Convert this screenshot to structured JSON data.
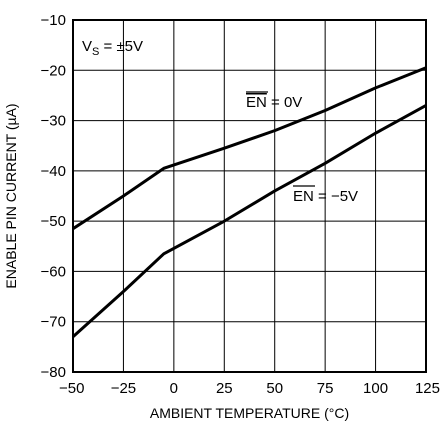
{
  "chart_data": {
    "type": "line",
    "title": "",
    "xlabel": "AMBIENT TEMPERATURE (°C)",
    "ylabel": "ENABLE PIN CURRENT (µA)",
    "xlim": [
      -50,
      125
    ],
    "ylim": [
      -80,
      -10
    ],
    "x_ticks": [
      -50,
      -25,
      0,
      25,
      50,
      75,
      100,
      125
    ],
    "x_tick_labels": [
      "−50",
      "−25",
      "0",
      "25",
      "50",
      "75",
      "100",
      "125"
    ],
    "y_ticks": [
      -10,
      -20,
      -30,
      -40,
      -50,
      -60,
      -70,
      -80
    ],
    "y_tick_labels": [
      "−10",
      "−20",
      "−30",
      "−40",
      "−50",
      "−60",
      "−70",
      "−80"
    ],
    "grid": true,
    "condition_label": {
      "main": "V",
      "sub": "S",
      "rest": " = ±5V"
    },
    "series": [
      {
        "label": {
          "overbar": "EN",
          "rest": " = 0V"
        },
        "color": "#000000",
        "x": [
          -50,
          -25,
          -5,
          25,
          50,
          75,
          100,
          125
        ],
        "y": [
          -51.5,
          -45.0,
          -39.5,
          -35.5,
          -32.0,
          -28.0,
          -23.5,
          -19.5
        ]
      },
      {
        "label": {
          "overbar": "EN",
          "rest": " = −5V"
        },
        "color": "#000000",
        "x": [
          -50,
          -25,
          -5,
          25,
          50,
          75,
          100,
          125
        ],
        "y": [
          -73.0,
          -64.0,
          -56.5,
          -50.0,
          -44.0,
          -38.5,
          -32.5,
          -27.0
        ]
      }
    ]
  }
}
